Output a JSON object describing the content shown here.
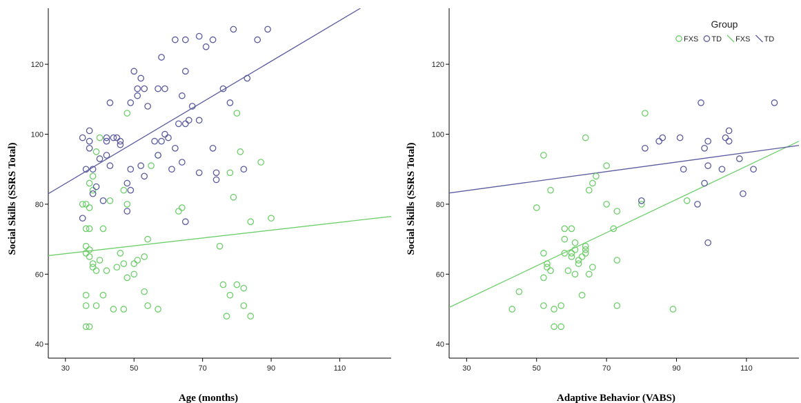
{
  "chart_data": [
    {
      "type": "scatter",
      "title": "",
      "xlabel": "Age (months)",
      "ylabel": "Social Skills (SSRS Total)",
      "xlim": [
        25,
        125
      ],
      "ylim": [
        36,
        136
      ],
      "xticks": [
        30,
        50,
        70,
        90,
        110
      ],
      "yticks": [
        40,
        60,
        80,
        100,
        120
      ],
      "grid": false,
      "legend": null,
      "series": [
        {
          "name": "FXS",
          "color": "#6dcf6a",
          "points": [
            [
              36,
              45
            ],
            [
              37,
              45
            ],
            [
              36,
              51
            ],
            [
              39,
              51
            ],
            [
              41,
              54
            ],
            [
              36,
              54
            ],
            [
              44,
              50
            ],
            [
              47,
              50
            ],
            [
              53,
              55
            ],
            [
              54,
              51
            ],
            [
              57,
              50
            ],
            [
              38,
              62
            ],
            [
              39,
              61
            ],
            [
              40,
              64
            ],
            [
              42,
              61
            ],
            [
              45,
              62
            ],
            [
              47,
              63
            ],
            [
              46,
              66
            ],
            [
              50,
              63
            ],
            [
              50,
              60
            ],
            [
              48,
              59
            ],
            [
              51,
              64
            ],
            [
              53,
              65
            ],
            [
              54,
              70
            ],
            [
              36,
              66
            ],
            [
              37,
              65
            ],
            [
              36,
              68
            ],
            [
              37,
              67
            ],
            [
              38,
              63
            ],
            [
              36,
              73
            ],
            [
              37,
              73
            ],
            [
              41,
              73
            ],
            [
              36,
              80
            ],
            [
              37,
              79
            ],
            [
              38,
              84
            ],
            [
              38,
              88
            ],
            [
              43,
              81
            ],
            [
              47,
              84
            ],
            [
              48,
              80
            ],
            [
              39,
              95
            ],
            [
              40,
              99
            ],
            [
              48,
              106
            ],
            [
              55,
              91
            ],
            [
              57,
              94
            ],
            [
              63,
              78
            ],
            [
              64,
              79
            ],
            [
              75,
              68
            ],
            [
              76,
              57
            ],
            [
              77,
              48
            ],
            [
              78,
              54
            ],
            [
              80,
              57
            ],
            [
              82,
              56
            ],
            [
              82,
              51
            ],
            [
              84,
              48
            ],
            [
              84,
              75
            ],
            [
              80,
              106
            ],
            [
              81,
              95
            ],
            [
              79,
              82
            ],
            [
              78,
              89
            ],
            [
              87,
              92
            ],
            [
              90,
              76
            ],
            [
              35,
              80
            ],
            [
              37,
              86
            ]
          ]
        },
        {
          "name": "TD",
          "color": "#5a5a9e",
          "points": [
            [
              35,
              99
            ],
            [
              37,
              98
            ],
            [
              37,
              101
            ],
            [
              37,
              96
            ],
            [
              38,
              90
            ],
            [
              38,
              83
            ],
            [
              39,
              85
            ],
            [
              40,
              93
            ],
            [
              41,
              81
            ],
            [
              42,
              99
            ],
            [
              42,
              98
            ],
            [
              42,
              94
            ],
            [
              43,
              91
            ],
            [
              44,
              99
            ],
            [
              43,
              109
            ],
            [
              45,
              99
            ],
            [
              46,
              98
            ],
            [
              46,
              97
            ],
            [
              48,
              86
            ],
            [
              49,
              84
            ],
            [
              49,
              90
            ],
            [
              49,
              109
            ],
            [
              50,
              118
            ],
            [
              51,
              111
            ],
            [
              52,
              116
            ],
            [
              51,
              113
            ],
            [
              53,
              113
            ],
            [
              54,
              108
            ],
            [
              53,
              88
            ],
            [
              52,
              91
            ],
            [
              57,
              113
            ],
            [
              58,
              122
            ],
            [
              59,
              113
            ],
            [
              59,
              100
            ],
            [
              60,
              99
            ],
            [
              58,
              98
            ],
            [
              56,
              98
            ],
            [
              57,
              94
            ],
            [
              62,
              96
            ],
            [
              61,
              90
            ],
            [
              63,
              103
            ],
            [
              64,
              111
            ],
            [
              65,
              103
            ],
            [
              65,
              118
            ],
            [
              65,
              127
            ],
            [
              62,
              127
            ],
            [
              66,
              104
            ],
            [
              67,
              108
            ],
            [
              64,
              92
            ],
            [
              65,
              75
            ],
            [
              69,
              104
            ],
            [
              69,
              89
            ],
            [
              69,
              128
            ],
            [
              71,
              125
            ],
            [
              73,
              127
            ],
            [
              74,
              89
            ],
            [
              74,
              87
            ],
            [
              73,
              96
            ],
            [
              76,
              113
            ],
            [
              78,
              109
            ],
            [
              79,
              130
            ],
            [
              82,
              90
            ],
            [
              83,
              116
            ],
            [
              86,
              127
            ],
            [
              89,
              130
            ],
            [
              35,
              76
            ],
            [
              36,
              90
            ],
            [
              48,
              78
            ]
          ]
        },
        {
          "name": "FXS",
          "kind": "fit",
          "color": "#6dcf6a",
          "line": [
            [
              25,
              65.3
            ],
            [
              125,
              76.5
            ]
          ]
        },
        {
          "name": "TD",
          "kind": "fit",
          "color": "#5a5a9e",
          "line": [
            [
              25,
              83
            ],
            [
              116,
              136
            ]
          ]
        }
      ]
    },
    {
      "type": "scatter",
      "title": "",
      "xlabel": "Adaptive Behavior (VABS)",
      "ylabel": "Social Skills (SSRS Total)",
      "xlim": [
        25,
        125
      ],
      "ylim": [
        36,
        136
      ],
      "xticks": [
        30,
        50,
        70,
        90,
        110
      ],
      "yticks": [
        40,
        60,
        80,
        100,
        120
      ],
      "grid": false,
      "legend": "top-right",
      "legend_title": "Group",
      "legend_items": [
        {
          "label": "FXS",
          "kind": "marker",
          "color": "#6dcf6a"
        },
        {
          "label": "TD",
          "kind": "marker",
          "color": "#5a5a9e"
        },
        {
          "label": "FXS",
          "kind": "line",
          "color": "#6dcf6a"
        },
        {
          "label": "TD",
          "kind": "line",
          "color": "#5a5a9e"
        }
      ],
      "series": [
        {
          "name": "FXS",
          "color": "#6dcf6a",
          "points": [
            [
              43,
              50
            ],
            [
              45,
              55
            ],
            [
              50,
              79
            ],
            [
              52,
              94
            ],
            [
              52,
              66
            ],
            [
              52,
              59
            ],
            [
              52,
              51
            ],
            [
              53,
              62
            ],
            [
              53,
              63
            ],
            [
              54,
              61
            ],
            [
              54,
              84
            ],
            [
              55,
              45
            ],
            [
              55,
              50
            ],
            [
              57,
              45
            ],
            [
              57,
              51
            ],
            [
              58,
              73
            ],
            [
              58,
              66
            ],
            [
              58,
              70
            ],
            [
              59,
              61
            ],
            [
              60,
              73
            ],
            [
              60,
              66
            ],
            [
              60,
              65
            ],
            [
              61,
              69
            ],
            [
              61,
              67
            ],
            [
              61,
              60
            ],
            [
              62,
              63
            ],
            [
              62,
              64
            ],
            [
              63,
              65
            ],
            [
              63,
              54
            ],
            [
              64,
              67
            ],
            [
              64,
              68
            ],
            [
              64,
              66
            ],
            [
              65,
              84
            ],
            [
              65,
              60
            ],
            [
              66,
              86
            ],
            [
              66,
              62
            ],
            [
              67,
              88
            ],
            [
              64,
              99
            ],
            [
              70,
              80
            ],
            [
              70,
              91
            ],
            [
              72,
              73
            ],
            [
              73,
              78
            ],
            [
              73,
              64
            ],
            [
              73,
              51
            ],
            [
              80,
              80
            ],
            [
              81,
              106
            ],
            [
              89,
              50
            ],
            [
              93,
              81
            ]
          ]
        },
        {
          "name": "TD",
          "color": "#5a5a9e",
          "points": [
            [
              80,
              81
            ],
            [
              81,
              96
            ],
            [
              85,
              98
            ],
            [
              86,
              99
            ],
            [
              91,
              99
            ],
            [
              92,
              90
            ],
            [
              96,
              80
            ],
            [
              97,
              109
            ],
            [
              98,
              96
            ],
            [
              98,
              86
            ],
            [
              99,
              91
            ],
            [
              99,
              98
            ],
            [
              99,
              69
            ],
            [
              103,
              90
            ],
            [
              104,
              99
            ],
            [
              105,
              101
            ],
            [
              105,
              98
            ],
            [
              108,
              93
            ],
            [
              109,
              83
            ],
            [
              112,
              90
            ],
            [
              118,
              109
            ]
          ]
        },
        {
          "name": "FXS",
          "kind": "fit",
          "color": "#6dcf6a",
          "line": [
            [
              25,
              50.5
            ],
            [
              125,
              98
            ]
          ]
        },
        {
          "name": "TD",
          "kind": "fit",
          "color": "#5a5a9e",
          "line": [
            [
              25,
              83.2
            ],
            [
              125,
              96.8
            ]
          ]
        }
      ]
    }
  ]
}
